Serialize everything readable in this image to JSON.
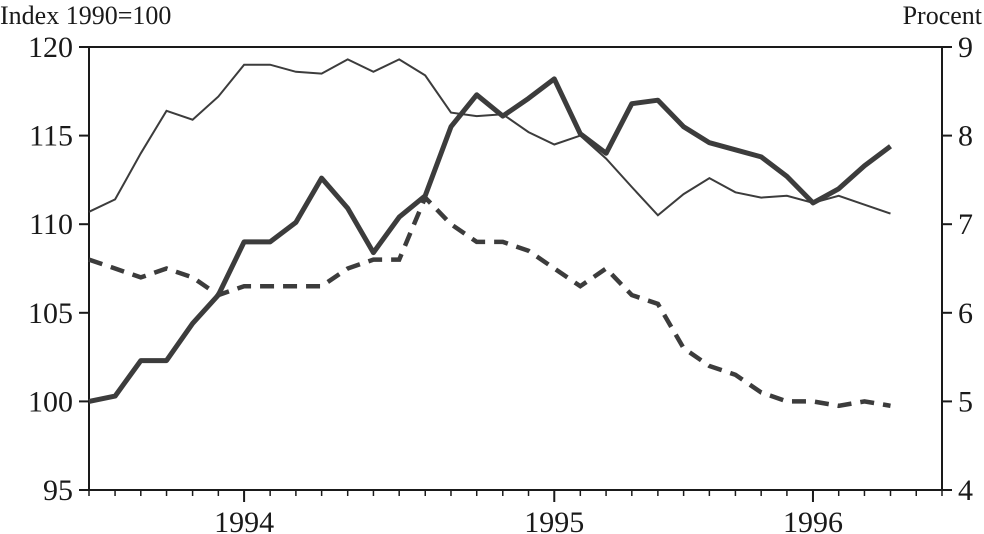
{
  "chart_data": {
    "type": "line",
    "left_axis_label": "Index 1990=100",
    "right_axis_label": "Procent",
    "left_ylim": [
      95,
      120
    ],
    "right_ylim": [
      4,
      9
    ],
    "left_yticks": [
      95,
      100,
      105,
      110,
      115,
      120
    ],
    "right_yticks": [
      4,
      5,
      6,
      7,
      8,
      9
    ],
    "xlim": [
      1993.333,
      1996.083
    ],
    "xticks": [
      {
        "value": 1993.833,
        "label": "1994"
      },
      {
        "value": 1994.833,
        "label": "1995"
      },
      {
        "value": 1995.667,
        "label": "1996"
      }
    ],
    "x_minor_ticks": [
      1993.333,
      1993.417,
      1993.5,
      1993.583,
      1993.667,
      1993.75,
      1993.833,
      1993.917,
      1994.0,
      1994.083,
      1994.167,
      1994.25,
      1994.333,
      1994.417,
      1994.5,
      1994.583,
      1994.667,
      1994.75,
      1994.833,
      1994.917,
      1995.0,
      1995.083,
      1995.167,
      1995.25,
      1995.333,
      1995.417,
      1995.5,
      1995.583,
      1995.667,
      1995.75,
      1995.833,
      1995.917,
      1996.0,
      1996.083
    ],
    "grid": false,
    "colors": {
      "thin": "#3c3c3c",
      "thick": "#3c3c3c",
      "dashed": "#3c3c3c",
      "axis": "#1a1a1a"
    },
    "series": [
      {
        "style": "thin",
        "axis": "left",
        "x": [
          1993.333,
          1993.417,
          1993.5,
          1993.583,
          1993.667,
          1993.75,
          1993.833,
          1993.917,
          1994.0,
          1994.083,
          1994.167,
          1994.25,
          1994.333,
          1994.417,
          1994.5,
          1994.583,
          1994.667,
          1994.75,
          1994.833,
          1994.917,
          1995.0,
          1995.083,
          1995.167,
          1995.25,
          1995.333,
          1995.417,
          1995.5,
          1995.583,
          1995.667,
          1995.75,
          1995.833,
          1995.917,
          1996.0,
          1996.083
        ],
        "values": [
          110.7,
          111.4,
          114.0,
          116.4,
          115.9,
          117.2,
          119.0,
          119.0,
          118.6,
          118.5,
          119.3,
          118.6,
          119.3,
          118.4,
          116.3,
          116.1,
          116.2,
          115.2,
          114.5,
          115.0,
          113.7,
          112.1,
          110.5,
          111.7,
          112.6,
          111.8,
          111.5,
          111.6,
          111.2,
          111.6,
          111.1,
          110.6,
          null,
          null
        ]
      },
      {
        "style": "thick",
        "axis": "left",
        "x": [
          1993.333,
          1993.417,
          1993.5,
          1993.583,
          1993.667,
          1993.75,
          1993.833,
          1993.917,
          1994.0,
          1994.083,
          1994.167,
          1994.25,
          1994.333,
          1994.417,
          1994.5,
          1994.583,
          1994.667,
          1994.75,
          1994.833,
          1994.917,
          1995.0,
          1995.083,
          1995.167,
          1995.25,
          1995.333,
          1995.417,
          1995.5,
          1995.583,
          1995.667,
          1995.75,
          1995.833,
          1995.917,
          1996.0,
          1996.083
        ],
        "values": [
          100.0,
          100.3,
          102.3,
          102.3,
          104.4,
          106.0,
          109.0,
          109.0,
          110.1,
          112.6,
          110.9,
          108.4,
          110.4,
          111.6,
          115.5,
          117.3,
          116.1,
          117.1,
          118.2,
          115.1,
          114.0,
          116.8,
          117.0,
          115.5,
          114.6,
          114.2,
          113.8,
          112.7,
          111.2,
          112.0,
          113.3,
          114.4,
          null,
          null
        ]
      },
      {
        "style": "dashed",
        "axis": "right",
        "x": [
          1993.333,
          1993.417,
          1993.5,
          1993.583,
          1993.667,
          1993.75,
          1993.833,
          1993.917,
          1994.0,
          1994.083,
          1994.167,
          1994.25,
          1994.333,
          1994.417,
          1994.5,
          1994.583,
          1994.667,
          1994.75,
          1994.833,
          1994.917,
          1995.0,
          1995.083,
          1995.167,
          1995.25,
          1995.333,
          1995.417,
          1995.5,
          1995.583,
          1995.667,
          1995.75,
          1995.833,
          1995.917,
          1996.0,
          1996.083
        ],
        "values": [
          6.6,
          6.5,
          6.4,
          6.5,
          6.4,
          6.2,
          6.3,
          6.3,
          6.3,
          6.3,
          6.5,
          6.6,
          6.6,
          7.3,
          7.0,
          6.8,
          6.8,
          6.7,
          6.5,
          6.3,
          6.5,
          6.2,
          6.1,
          5.6,
          5.4,
          5.3,
          5.1,
          5.0,
          5.0,
          4.95,
          5.0,
          4.95,
          null,
          null
        ]
      }
    ]
  }
}
